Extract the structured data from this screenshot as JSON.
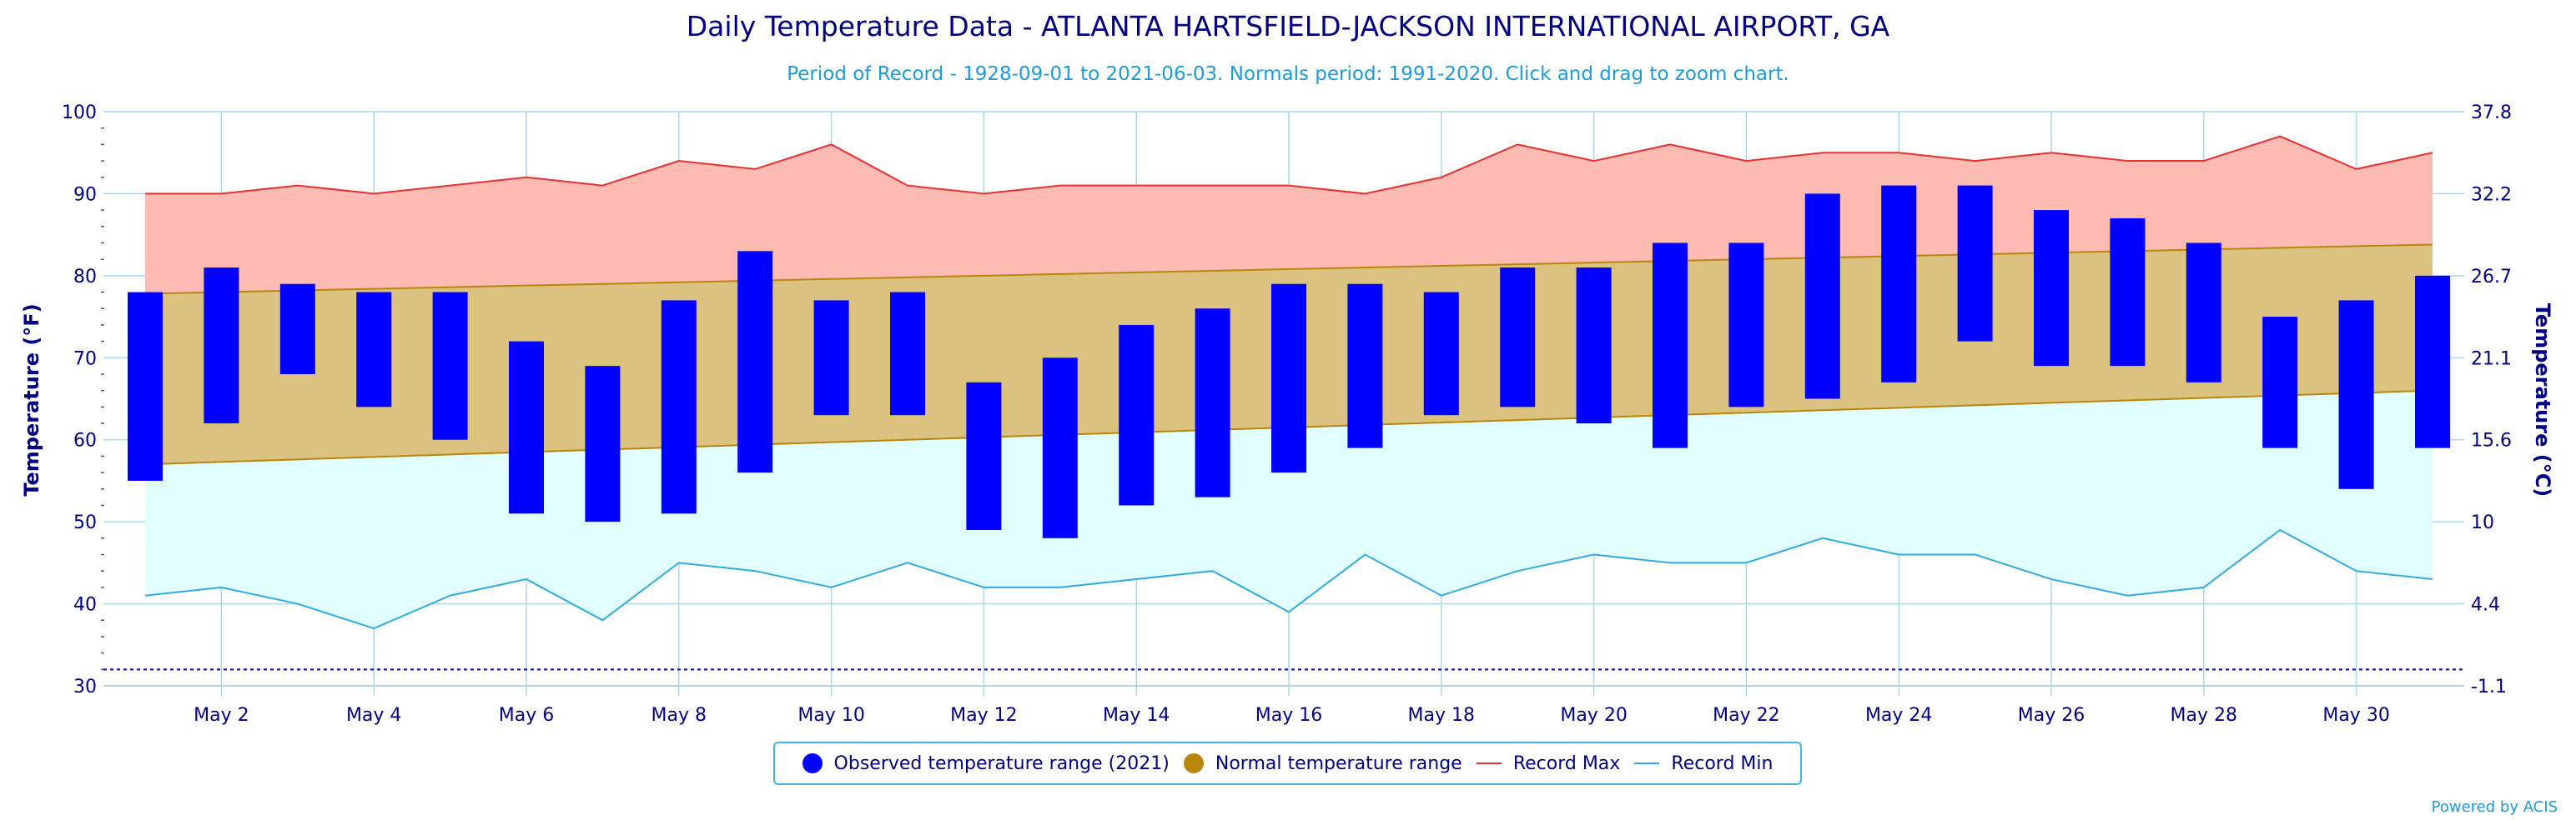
{
  "header": {
    "title": "Daily Temperature Data - ATLANTA HARTSFIELD-JACKSON INTERNATIONAL AIRPORT, GA",
    "subtitle": "Period of Record - 1928-09-01 to 2021-06-03. Normals period: 1991-2020. Click and drag to zoom chart."
  },
  "credit": "Powered by ACIS",
  "colors": {
    "observed": "#0000ff",
    "normal_fill": "#dcc281",
    "normal_line": "#b8860b",
    "normal_legend": "#b8860b",
    "record_max_fill": "#fdbbb4",
    "record_max_line": "#e83030",
    "record_min_fill": "#e0feff",
    "record_min_line": "#33aadd",
    "axis_text": "#000080",
    "grid": "#a8d8f0",
    "freeze_line": "#0000cc"
  },
  "legend": {
    "observed": "Observed temperature range (2021)",
    "normal": "Normal temperature range",
    "record_max": "Record Max",
    "record_min": "Record Min"
  },
  "chart_data": {
    "type": "bar",
    "title": "Daily Temperature Data - ATLANTA HARTSFIELD-JACKSON INTERNATIONAL AIRPORT, GA",
    "subtitle": "Period of Record - 1928-09-01 to 2021-06-03. Normals period: 1991-2020. Click and drag to zoom chart.",
    "ylabel": "Temperature (°F)",
    "ylabel_right": "Temperature (°C)",
    "ylim": [
      30,
      100
    ],
    "yticks": [
      30,
      40,
      50,
      60,
      70,
      80,
      90,
      100
    ],
    "yticks_right": [
      "-1.1",
      "4.4",
      "10",
      "15.6",
      "21.1",
      "26.7",
      "32.2",
      "37.8"
    ],
    "grid": true,
    "legend_position": "bottom",
    "x_day_range": [
      1,
      31
    ],
    "xtick_days": [
      2,
      4,
      6,
      8,
      10,
      12,
      14,
      16,
      18,
      20,
      22,
      24,
      26,
      28,
      30
    ],
    "xtick_labels": [
      "May 2",
      "May 4",
      "May 6",
      "May 8",
      "May 10",
      "May 12",
      "May 14",
      "May 16",
      "May 18",
      "May 20",
      "May 22",
      "May 24",
      "May 26",
      "May 28",
      "May 30"
    ],
    "days": [
      1,
      2,
      3,
      4,
      5,
      6,
      7,
      8,
      9,
      10,
      11,
      12,
      13,
      14,
      15,
      16,
      17,
      18,
      19,
      20,
      21,
      22,
      23,
      24,
      25,
      26,
      27,
      28,
      29,
      30,
      31
    ],
    "freeze_line": 32,
    "series": [
      {
        "name": "Observed temperature range (2021)",
        "type": "range-bar",
        "low": [
          55,
          62,
          68,
          64,
          60,
          51,
          50,
          51,
          56,
          63,
          63,
          49,
          48,
          52,
          53,
          56,
          59,
          63,
          64,
          62,
          59,
          64,
          65,
          67,
          72,
          69,
          69,
          67,
          59,
          54,
          59
        ],
        "high": [
          78,
          81,
          79,
          78,
          78,
          72,
          69,
          77,
          83,
          77,
          78,
          67,
          70,
          74,
          76,
          79,
          79,
          78,
          81,
          81,
          84,
          84,
          90,
          91,
          91,
          88,
          87,
          84,
          75,
          77,
          80
        ]
      },
      {
        "name": "Normal temperature range",
        "type": "area-range",
        "low": [
          57,
          57.3,
          57.6,
          57.9,
          58.2,
          58.5,
          58.8,
          59.1,
          59.4,
          59.7,
          60,
          60.3,
          60.6,
          60.9,
          61.2,
          61.5,
          61.8,
          62.1,
          62.4,
          62.7,
          63,
          63.3,
          63.6,
          63.9,
          64.2,
          64.5,
          64.8,
          65.1,
          65.4,
          65.7,
          66
        ],
        "high": [
          77.8,
          78,
          78.2,
          78.4,
          78.6,
          78.8,
          79,
          79.2,
          79.4,
          79.6,
          79.8,
          80,
          80.2,
          80.4,
          80.6,
          80.8,
          81,
          81.2,
          81.4,
          81.6,
          81.8,
          82,
          82.2,
          82.4,
          82.6,
          82.8,
          83,
          83.2,
          83.4,
          83.6,
          83.8
        ]
      },
      {
        "name": "Record Max",
        "type": "line",
        "values": [
          90,
          90,
          91,
          90,
          91,
          92,
          91,
          94,
          93,
          96,
          91,
          90,
          91,
          91,
          91,
          91,
          90,
          92,
          96,
          94,
          96,
          94,
          95,
          95,
          94,
          95,
          94,
          94,
          97,
          93,
          95
        ]
      },
      {
        "name": "Record Min",
        "type": "line",
        "values": [
          41,
          42,
          40,
          37,
          41,
          43,
          38,
          45,
          44,
          42,
          45,
          42,
          42,
          43,
          44,
          39,
          46,
          41,
          44,
          46,
          45,
          45,
          48,
          46,
          46,
          43,
          41,
          42,
          49,
          44,
          43
        ]
      }
    ]
  }
}
